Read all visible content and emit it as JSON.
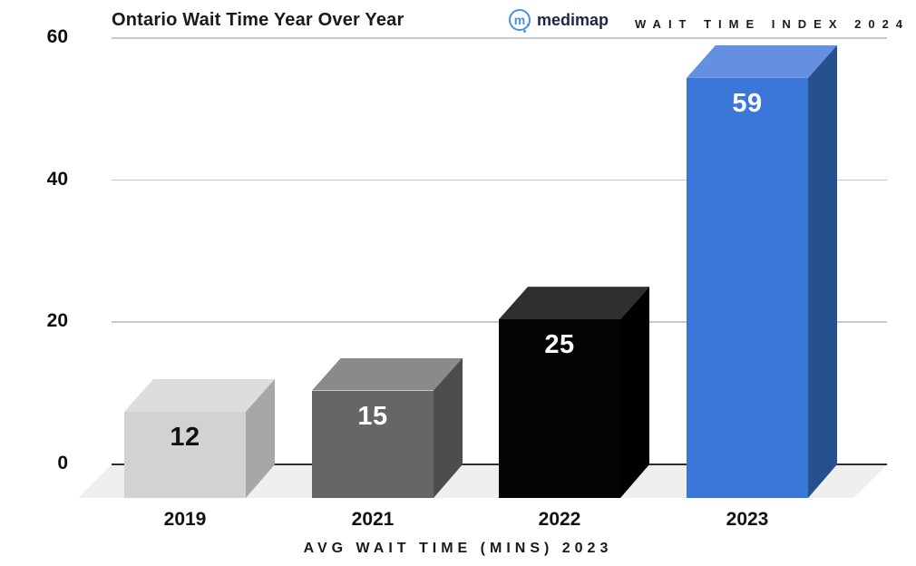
{
  "header": {
    "brand": {
      "name": "medimap",
      "mark": "m"
    },
    "index_label": "WAIT TIME INDEX 2024"
  },
  "chart_data": {
    "type": "bar",
    "title": "Ontario Wait Time Year Over Year",
    "xlabel": "AVG WAIT TIME (MINS) 2023",
    "ylabel": "",
    "categories": [
      "2019",
      "2021",
      "2022",
      "2023"
    ],
    "values": [
      12,
      15,
      25,
      59
    ],
    "ylim": [
      0,
      60
    ],
    "yticks": [
      0,
      20,
      40,
      60
    ],
    "grid": true,
    "legend": "none",
    "style": "3d-bars",
    "bar_colors": [
      {
        "front": "#d2d2d2",
        "top": "#dddddd",
        "side": "#a7a7a7",
        "label": "#111111"
      },
      {
        "front": "#666666",
        "top": "#8a8a8a",
        "side": "#4d4d4d",
        "label": "#ffffff"
      },
      {
        "front": "#050505",
        "top": "#2f2f2f",
        "side": "#000000",
        "label": "#ffffff"
      },
      {
        "front": "#3b76d9",
        "top": "#6390e0",
        "side": "#27508f",
        "label": "#ffffff"
      }
    ]
  },
  "colors": {
    "brand_blue": "#4a8fe8",
    "brand_text": "#1c2742",
    "accent_bar": "#3b76d9",
    "grid": "#c9c9c9",
    "axis": "#2e2e2e",
    "floor": "#efefef",
    "background": "#ffffff"
  }
}
